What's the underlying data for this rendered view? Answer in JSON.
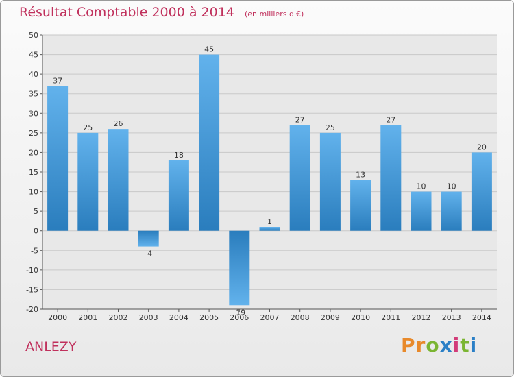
{
  "title": "Résultat Comptable 2000 à 2014",
  "unit": "(en milliers d'€)",
  "town": "ANLEZY",
  "logo": {
    "text": "Proxiti",
    "colors": [
      "#e8892a",
      "#e8892a",
      "#7bb532",
      "#2a7fc6",
      "#d23c78",
      "#7bb532",
      "#2a7fc6"
    ]
  },
  "colors": {
    "bar_light": "#62b2ec",
    "bar_dark": "#2a7dbd",
    "title": "#c0305c",
    "grid": "#c9c9c9"
  },
  "chart_data": {
    "type": "bar",
    "title": "Résultat Comptable 2000 à 2014",
    "xlabel": "",
    "ylabel": "",
    "ylim": [
      -20,
      50
    ],
    "yticks": [
      50,
      45,
      40,
      35,
      30,
      25,
      20,
      15,
      10,
      5,
      0,
      -5,
      -10,
      -15,
      -20
    ],
    "categories": [
      "2000",
      "2001",
      "2002",
      "2003",
      "2004",
      "2005",
      "2006",
      "2007",
      "2008",
      "2009",
      "2010",
      "2011",
      "2012",
      "2013",
      "2014"
    ],
    "values": [
      37,
      25,
      26,
      -4,
      18,
      45,
      -19,
      1,
      27,
      25,
      13,
      27,
      10,
      10,
      20
    ]
  }
}
